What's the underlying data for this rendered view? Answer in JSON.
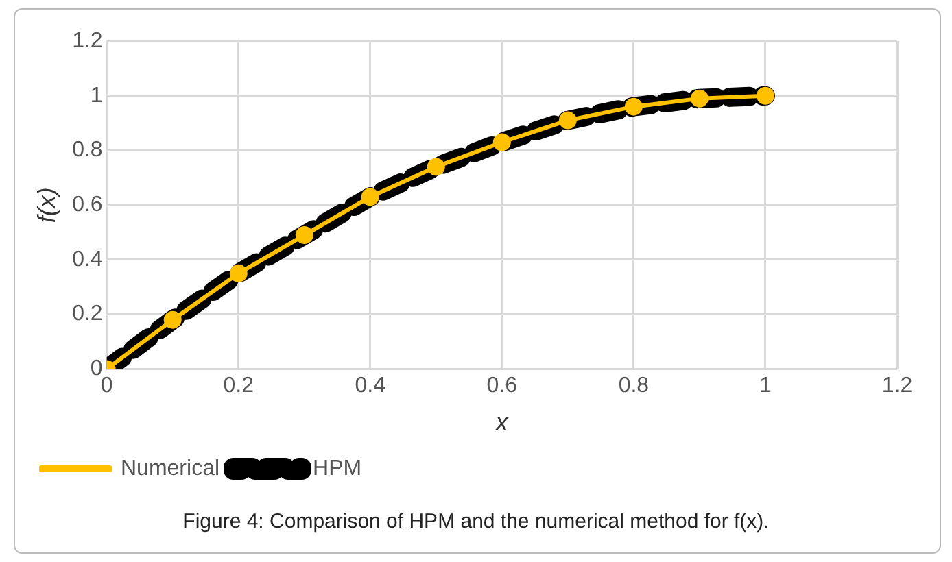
{
  "chart_data": {
    "type": "line",
    "xlabel": "x",
    "ylabel": "f(x)",
    "x": [
      0,
      0.1,
      0.2,
      0.3,
      0.4,
      0.5,
      0.6,
      0.7,
      0.8,
      0.9,
      1
    ],
    "series": [
      {
        "name": "HPM",
        "color": "#000000",
        "line_style": "dashed",
        "marker": "none",
        "values": [
          0,
          0.18,
          0.35,
          0.49,
          0.63,
          0.74,
          0.83,
          0.91,
          0.96,
          0.99,
          1
        ]
      },
      {
        "name": "Numerical",
        "color": "#ffc000",
        "line_style": "solid",
        "marker": "circle",
        "values": [
          0,
          0.18,
          0.35,
          0.49,
          0.63,
          0.74,
          0.83,
          0.91,
          0.96,
          0.99,
          1
        ]
      }
    ],
    "xlim": [
      0,
      1.2
    ],
    "xticks": [
      0,
      0.2,
      0.4,
      0.6,
      0.8,
      1,
      1.2
    ],
    "ylim": [
      0,
      1.2
    ],
    "yticks": [
      0,
      0.2,
      0.4,
      0.6,
      0.8,
      1,
      1.2
    ],
    "grid": true,
    "legend": "bottom left",
    "annotations": [
      "Figure 4: Comparison of HPM and the numerical method for f(x)."
    ]
  }
}
